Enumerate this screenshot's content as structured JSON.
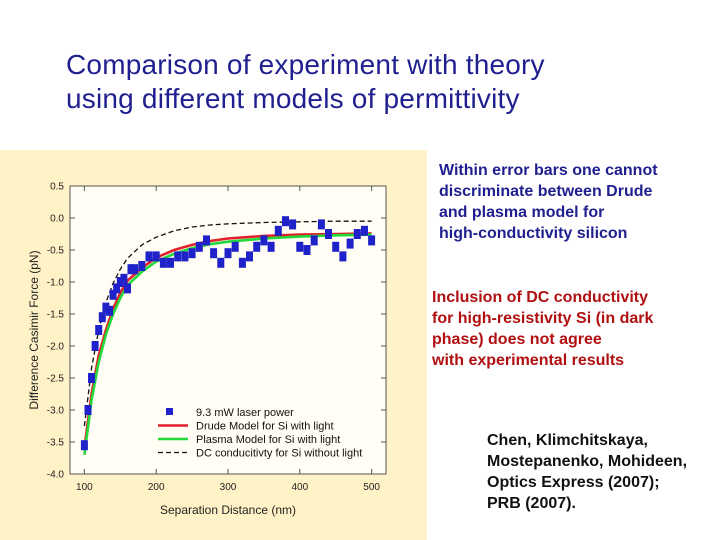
{
  "slide": {
    "title_lines": [
      "Comparison of experiment with theory",
      "using different models of permittivity"
    ],
    "note1_lines": [
      "Within error bars one cannot",
      "discriminate between Drude",
      "and plasma model for",
      "high-conductivity silicon"
    ],
    "note2_lines": [
      "Inclusion of DC conductivity",
      "for high-resistivity Si (in dark",
      "phase) does not agree",
      "with experimental results"
    ],
    "ref_lines": [
      "Chen, Klimchitskaya,",
      "Mostepanenko, Mohideen,",
      "Optics Express (2007);",
      "PRB (2007)."
    ],
    "colors": {
      "title": "#1f1f8f",
      "note2": "#b01010",
      "panel": "#fff2c6"
    }
  },
  "chart_data": {
    "type": "scatter",
    "xlabel": "Separation Distance (nm)",
    "ylabel": "Difference Casimir Force (pN)",
    "xlim": [
      80,
      520
    ],
    "ylim": [
      -4.0,
      0.5
    ],
    "xticks": [
      100,
      200,
      300,
      400,
      500
    ],
    "yticks": [
      0.5,
      0.0,
      -0.5,
      -1.0,
      -1.5,
      -2.0,
      -2.5,
      -3.0,
      -3.5,
      -4.0
    ],
    "ytick_labels": [
      "0.5",
      "0.0",
      "-0.5",
      "-1.0",
      "-1.5",
      "-2.0",
      "-2.5",
      "-3.0",
      "-3.5",
      "-4.0"
    ],
    "legend_position": "bottom-right",
    "series": [
      {
        "name": "9.3 mW laser power",
        "kind": "scatter",
        "color": "#1e22c8",
        "x": [
          100,
          105,
          110,
          115,
          120,
          125,
          130,
          135,
          140,
          145,
          150,
          155,
          160,
          165,
          170,
          180,
          190,
          200,
          210,
          220,
          230,
          240,
          250,
          260,
          270,
          280,
          290,
          300,
          310,
          320,
          330,
          340,
          350,
          360,
          370,
          380,
          390,
          400,
          410,
          420,
          430,
          440,
          450,
          460,
          470,
          480,
          490,
          500
        ],
        "y": [
          -3.55,
          -3.0,
          -2.5,
          -2.0,
          -1.75,
          -1.55,
          -1.4,
          -1.45,
          -1.2,
          -1.1,
          -1.0,
          -0.95,
          -1.1,
          -0.8,
          -0.8,
          -0.75,
          -0.6,
          -0.6,
          -0.7,
          -0.7,
          -0.6,
          -0.6,
          -0.55,
          -0.45,
          -0.35,
          -0.55,
          -0.7,
          -0.55,
          -0.45,
          -0.7,
          -0.6,
          -0.45,
          -0.35,
          -0.45,
          -0.2,
          -0.05,
          -0.1,
          -0.45,
          -0.5,
          -0.35,
          -0.1,
          -0.25,
          -0.45,
          -0.6,
          -0.4,
          -0.25,
          -0.2,
          -0.35
        ]
      },
      {
        "name": "Drude Model for Si with light",
        "kind": "line",
        "color": "#e0202a",
        "x": [
          100,
          110,
          120,
          130,
          140,
          150,
          160,
          180,
          200,
          225,
          250,
          275,
          300,
          350,
          400,
          450,
          500
        ],
        "y": [
          -3.6,
          -2.75,
          -2.15,
          -1.75,
          -1.42,
          -1.17,
          -0.98,
          -0.78,
          -0.62,
          -0.5,
          -0.42,
          -0.36,
          -0.32,
          -0.28,
          -0.26,
          -0.25,
          -0.24
        ]
      },
      {
        "name": "Plasma Model for Si with light",
        "kind": "line",
        "color": "#22d83a",
        "x": [
          100,
          110,
          120,
          130,
          140,
          150,
          160,
          180,
          200,
          225,
          250,
          275,
          300,
          350,
          400,
          450,
          500
        ],
        "y": [
          -3.7,
          -2.85,
          -2.25,
          -1.82,
          -1.5,
          -1.25,
          -1.05,
          -0.84,
          -0.68,
          -0.56,
          -0.47,
          -0.41,
          -0.37,
          -0.32,
          -0.29,
          -0.27,
          -0.26
        ]
      },
      {
        "name": "DC conducitivty for Si without light",
        "kind": "dashed",
        "color": "#111111",
        "x": [
          100,
          110,
          120,
          130,
          140,
          150,
          160,
          180,
          200,
          225,
          250,
          275,
          300,
          350,
          400,
          450,
          500
        ],
        "y": [
          -3.25,
          -2.35,
          -1.75,
          -1.32,
          -1.02,
          -0.8,
          -0.63,
          -0.42,
          -0.3,
          -0.2,
          -0.14,
          -0.11,
          -0.09,
          -0.07,
          -0.06,
          -0.05,
          -0.05
        ]
      }
    ]
  }
}
